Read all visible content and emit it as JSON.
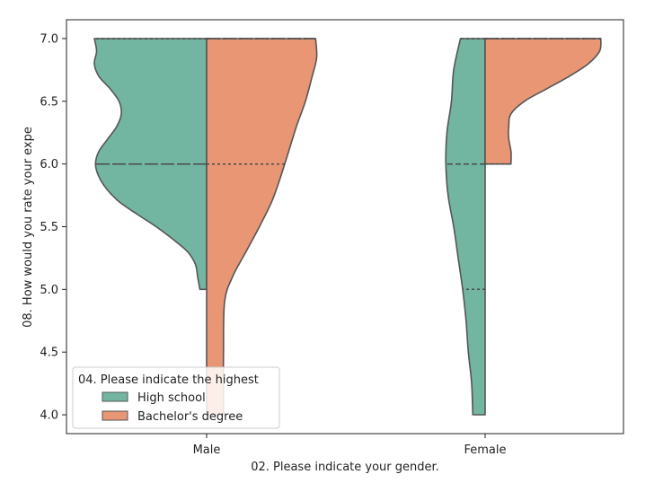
{
  "chart_data": {
    "type": "violin",
    "split": true,
    "categories": [
      "Male",
      "Female"
    ],
    "xlabel": "02. Please indicate your gender.",
    "ylabel": "08. How would you rate your expe",
    "ylim": [
      3.85,
      7.15
    ],
    "yticks": [
      4.0,
      4.5,
      5.0,
      5.5,
      6.0,
      6.5,
      7.0
    ],
    "ytick_labels": [
      "4.0",
      "4.5",
      "5.0",
      "5.5",
      "6.0",
      "6.5",
      "7.0"
    ],
    "grid": false,
    "legend": {
      "title": "04. Please indicate the highest",
      "placement": "lower-left"
    },
    "series": [
      {
        "name": "High school",
        "color": "#72b6a1",
        "violins": [
          {
            "category": "Male",
            "range": [
              5.0,
              7.0
            ],
            "median": 6.0,
            "quartiles": [
              6.0,
              6.0,
              7.0
            ],
            "density": [
              [
                5.0,
                0.06
              ],
              [
                5.1,
                0.08
              ],
              [
                5.2,
                0.1
              ],
              [
                5.3,
                0.17
              ],
              [
                5.4,
                0.3
              ],
              [
                5.5,
                0.45
              ],
              [
                5.6,
                0.62
              ],
              [
                5.7,
                0.78
              ],
              [
                5.8,
                0.89
              ],
              [
                5.9,
                0.96
              ],
              [
                6.0,
                0.99
              ],
              [
                6.1,
                0.96
              ],
              [
                6.2,
                0.88
              ],
              [
                6.3,
                0.8
              ],
              [
                6.4,
                0.76
              ],
              [
                6.5,
                0.78
              ],
              [
                6.6,
                0.86
              ],
              [
                6.7,
                0.96
              ],
              [
                6.8,
                1.0
              ],
              [
                6.9,
                0.98
              ],
              [
                7.0,
                1.0
              ]
            ]
          },
          {
            "category": "Female",
            "range": [
              4.0,
              7.0
            ],
            "median": 6.0,
            "quartiles": [
              5.0,
              6.0,
              7.0
            ],
            "density": [
              [
                4.0,
                0.11
              ],
              [
                4.25,
                0.12
              ],
              [
                4.5,
                0.15
              ],
              [
                4.75,
                0.17
              ],
              [
                5.0,
                0.2
              ],
              [
                5.25,
                0.24
              ],
              [
                5.5,
                0.28
              ],
              [
                5.75,
                0.33
              ],
              [
                6.0,
                0.35
              ],
              [
                6.25,
                0.34
              ],
              [
                6.5,
                0.3
              ],
              [
                6.75,
                0.28
              ],
              [
                7.0,
                0.22
              ]
            ]
          }
        ]
      },
      {
        "name": "Bachelor's degree",
        "color": "#e99675",
        "violins": [
          {
            "category": "Male",
            "range": [
              4.0,
              7.0
            ],
            "median": 7.0,
            "quartiles": [
              6.0,
              7.0,
              7.0
            ],
            "density": [
              [
                4.0,
                0.15
              ],
              [
                4.5,
                0.15
              ],
              [
                4.9,
                0.16
              ],
              [
                5.1,
                0.23
              ],
              [
                5.3,
                0.35
              ],
              [
                5.5,
                0.47
              ],
              [
                5.7,
                0.58
              ],
              [
                5.9,
                0.66
              ],
              [
                6.1,
                0.73
              ],
              [
                6.3,
                0.8
              ],
              [
                6.5,
                0.88
              ],
              [
                6.7,
                0.94
              ],
              [
                6.85,
                0.98
              ],
              [
                7.0,
                0.97
              ]
            ]
          },
          {
            "category": "Female",
            "range": [
              6.0,
              7.0
            ],
            "median": 7.0,
            "quartiles": [
              6.0,
              7.0,
              7.0
            ],
            "density": [
              [
                6.0,
                0.23
              ],
              [
                6.1,
                0.23
              ],
              [
                6.2,
                0.21
              ],
              [
                6.3,
                0.21
              ],
              [
                6.4,
                0.23
              ],
              [
                6.5,
                0.35
              ],
              [
                6.6,
                0.55
              ],
              [
                6.7,
                0.75
              ],
              [
                6.8,
                0.92
              ],
              [
                6.9,
                1.02
              ],
              [
                7.0,
                1.03
              ]
            ]
          }
        ]
      }
    ]
  }
}
